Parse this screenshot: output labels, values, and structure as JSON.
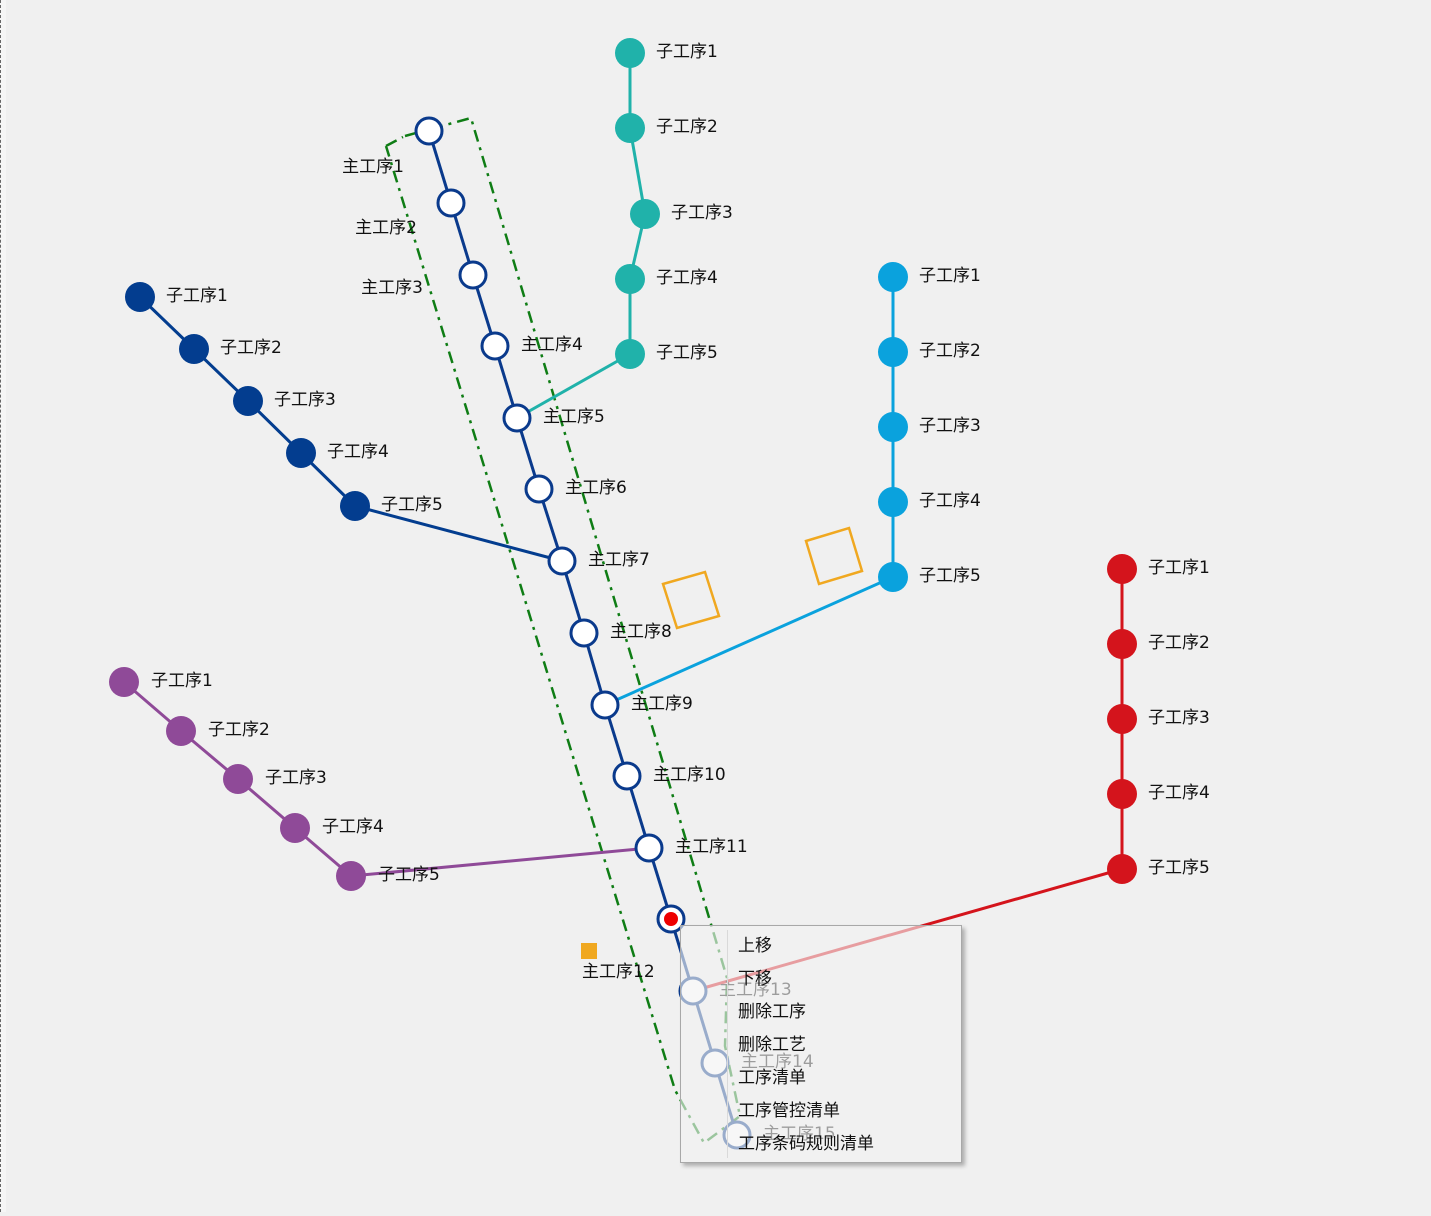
{
  "main_route": {
    "color": "#0a3a8c",
    "nodes": [
      "主工序1",
      "主工序2",
      "主工序3",
      "主工序4",
      "主工序5",
      "主工序6",
      "主工序7",
      "主工序8",
      "主工序9",
      "主工序10",
      "主工序11",
      "主工序12",
      "主工序13",
      "主工序14",
      "主工序15"
    ],
    "selected_index": 11,
    "selected_marker_color": "#ee0000"
  },
  "branches": [
    {
      "id": "teal",
      "color": "#20b2aa",
      "nodes": [
        "子工序1",
        "子工序2",
        "子工序3",
        "子工序4",
        "子工序5"
      ],
      "joins_main": "主工序5"
    },
    {
      "id": "navy",
      "color": "#033d8f",
      "nodes": [
        "子工序1",
        "子工序2",
        "子工序3",
        "子工序4",
        "子工序5"
      ],
      "joins_main": "主工序7"
    },
    {
      "id": "sky",
      "color": "#0aa2dd",
      "nodes": [
        "子工序1",
        "子工序2",
        "子工序3",
        "子工序4",
        "子工序5"
      ],
      "joins_main": "主工序9"
    },
    {
      "id": "purple",
      "color": "#8f4a98",
      "nodes": [
        "子工序1",
        "子工序2",
        "子工序3",
        "子工序4",
        "子工序5"
      ],
      "joins_main": "主工序11"
    },
    {
      "id": "red",
      "color": "#d4141c",
      "nodes": [
        "子工序1",
        "子工序2",
        "子工序3",
        "子工序4",
        "子工序5"
      ],
      "joins_main": "主工序13"
    }
  ],
  "selection_frame_color": "#0f7d15",
  "marker_color": "#f0a820",
  "context_menu": {
    "items": [
      "上移",
      "下移",
      "删除工序",
      "删除工艺",
      "工序清单",
      "工序管控清单",
      "工序条码规则清单"
    ]
  }
}
